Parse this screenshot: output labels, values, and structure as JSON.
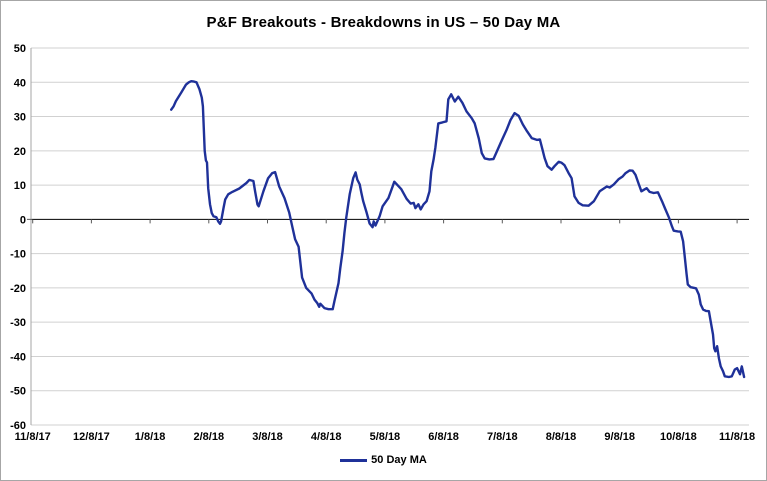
{
  "chart": {
    "title": "P&F Breakouts - Breakdowns in US – 50 Day MA",
    "legend": {
      "label": "50 Day MA"
    }
  },
  "colors": {
    "series_line": "#1f3199",
    "gridline": "#d1d1d1",
    "zero_line": "#000000",
    "axis_line": "#a6a6a6",
    "tick": "#595959",
    "text": "#000000",
    "frame_border": "#a6a6a6",
    "background": "#ffffff"
  },
  "chart_data": {
    "type": "line",
    "title": "P&F Breakouts - Breakdowns in US – 50 Day MA",
    "xlabel": "",
    "ylabel": "",
    "x_categories": [
      "11/8/17",
      "12/8/17",
      "1/8/18",
      "2/8/18",
      "3/8/18",
      "4/8/18",
      "5/8/18",
      "6/8/18",
      "7/8/18",
      "8/8/18",
      "9/8/18",
      "10/8/18",
      "11/8/18"
    ],
    "x_unit_note": "x values below are months after 11/8/17 (0 = 11/8/17, 12 = 11/8/18)",
    "ylim": [
      -60,
      50
    ],
    "y_ticks": [
      50,
      40,
      30,
      20,
      10,
      0,
      -10,
      -20,
      -30,
      -40,
      -50,
      -60
    ],
    "grid": true,
    "legend_position": "bottom",
    "series": [
      {
        "name": "50 Day MA",
        "color": "#1f3199",
        "points": [
          [
            2.36,
            32
          ],
          [
            2.4,
            33
          ],
          [
            2.44,
            34.5
          ],
          [
            2.53,
            37
          ],
          [
            2.61,
            39.3
          ],
          [
            2.66,
            40
          ],
          [
            2.7,
            40.3
          ],
          [
            2.75,
            40.2
          ],
          [
            2.79,
            40
          ],
          [
            2.84,
            38
          ],
          [
            2.88,
            35.5
          ],
          [
            2.9,
            33
          ],
          [
            2.93,
            20
          ],
          [
            2.95,
            17.2
          ],
          [
            2.97,
            16.6
          ],
          [
            2.99,
            9.1
          ],
          [
            3.02,
            4.4
          ],
          [
            3.05,
            1.9
          ],
          [
            3.08,
            0.9
          ],
          [
            3.13,
            0.6
          ],
          [
            3.16,
            -0.6
          ],
          [
            3.19,
            -1.3
          ],
          [
            3.21,
            -0.6
          ],
          [
            3.25,
            3.3
          ],
          [
            3.28,
            5.8
          ],
          [
            3.33,
            7.3
          ],
          [
            3.4,
            8.0
          ],
          [
            3.52,
            9.0
          ],
          [
            3.64,
            10.6
          ],
          [
            3.69,
            11.5
          ],
          [
            3.76,
            11.2
          ],
          [
            3.79,
            8.0
          ],
          [
            3.83,
            4.3
          ],
          [
            3.85,
            3.8
          ],
          [
            3.93,
            8.2
          ],
          [
            4.01,
            12.0
          ],
          [
            4.08,
            13.5
          ],
          [
            4.13,
            13.8
          ],
          [
            4.2,
            9.6
          ],
          [
            4.29,
            6.2
          ],
          [
            4.37,
            2.0
          ],
          [
            4.42,
            -2.0
          ],
          [
            4.47,
            -5.8
          ],
          [
            4.53,
            -8.0
          ],
          [
            4.59,
            -17.0
          ],
          [
            4.66,
            -20.0
          ],
          [
            4.75,
            -21.6
          ],
          [
            4.8,
            -23.4
          ],
          [
            4.85,
            -24.5
          ],
          [
            4.88,
            -25.5
          ],
          [
            4.9,
            -24.6
          ],
          [
            4.97,
            -25.9
          ],
          [
            5.04,
            -26.2
          ],
          [
            5.11,
            -26.2
          ],
          [
            5.14,
            -23.9
          ],
          [
            5.21,
            -18.6
          ],
          [
            5.24,
            -14.2
          ],
          [
            5.28,
            -9.3
          ],
          [
            5.31,
            -4.0
          ],
          [
            5.34,
            0.4
          ],
          [
            5.4,
            7.3
          ],
          [
            5.46,
            12.0
          ],
          [
            5.5,
            13.7
          ],
          [
            5.53,
            11.6
          ],
          [
            5.57,
            10.2
          ],
          [
            5.6,
            7.7
          ],
          [
            5.63,
            5.3
          ],
          [
            5.69,
            1.9
          ],
          [
            5.74,
            -1.2
          ],
          [
            5.79,
            -2.3
          ],
          [
            5.81,
            -0.6
          ],
          [
            5.84,
            -1.8
          ],
          [
            5.91,
            0.9
          ],
          [
            5.96,
            3.8
          ],
          [
            6.06,
            6.2
          ],
          [
            6.13,
            9.5
          ],
          [
            6.16,
            11.0
          ],
          [
            6.23,
            9.7
          ],
          [
            6.28,
            8.8
          ],
          [
            6.37,
            6.0
          ],
          [
            6.44,
            4.6
          ],
          [
            6.49,
            4.8
          ],
          [
            6.52,
            3.3
          ],
          [
            6.57,
            4.4
          ],
          [
            6.61,
            2.9
          ],
          [
            6.66,
            4.4
          ],
          [
            6.71,
            5.3
          ],
          [
            6.76,
            8.2
          ],
          [
            6.79,
            14.0
          ],
          [
            6.83,
            17.5
          ],
          [
            6.86,
            21.0
          ],
          [
            6.91,
            28.0
          ],
          [
            6.98,
            28.3
          ],
          [
            7.05,
            28.6
          ],
          [
            7.08,
            35.0
          ],
          [
            7.13,
            36.5
          ],
          [
            7.19,
            34.4
          ],
          [
            7.25,
            35.8
          ],
          [
            7.32,
            34.0
          ],
          [
            7.39,
            31.5
          ],
          [
            7.48,
            29.5
          ],
          [
            7.53,
            28.0
          ],
          [
            7.6,
            23.6
          ],
          [
            7.65,
            19.3
          ],
          [
            7.7,
            17.8
          ],
          [
            7.78,
            17.5
          ],
          [
            7.85,
            17.6
          ],
          [
            7.9,
            19.5
          ],
          [
            7.99,
            23.0
          ],
          [
            8.07,
            26.0
          ],
          [
            8.14,
            29.0
          ],
          [
            8.21,
            31.0
          ],
          [
            8.28,
            30.2
          ],
          [
            8.35,
            27.7
          ],
          [
            8.41,
            26.0
          ],
          [
            8.5,
            23.7
          ],
          [
            8.59,
            23.2
          ],
          [
            8.64,
            23.3
          ],
          [
            8.69,
            20.0
          ],
          [
            8.72,
            17.9
          ],
          [
            8.77,
            15.5
          ],
          [
            8.84,
            14.5
          ],
          [
            8.89,
            15.5
          ],
          [
            8.96,
            16.8
          ],
          [
            9.01,
            16.5
          ],
          [
            9.06,
            15.8
          ],
          [
            9.13,
            13.5
          ],
          [
            9.18,
            12.0
          ],
          [
            9.23,
            6.7
          ],
          [
            9.3,
            4.8
          ],
          [
            9.37,
            4.1
          ],
          [
            9.47,
            4.0
          ],
          [
            9.56,
            5.3
          ],
          [
            9.66,
            8.2
          ],
          [
            9.78,
            9.6
          ],
          [
            9.83,
            9.3
          ],
          [
            9.9,
            10.2
          ],
          [
            9.98,
            11.7
          ],
          [
            10.05,
            12.5
          ],
          [
            10.1,
            13.5
          ],
          [
            10.17,
            14.3
          ],
          [
            10.22,
            14.2
          ],
          [
            10.27,
            13.0
          ],
          [
            10.32,
            10.5
          ],
          [
            10.37,
            8.2
          ],
          [
            10.43,
            8.8
          ],
          [
            10.46,
            9.1
          ],
          [
            10.51,
            8.0
          ],
          [
            10.58,
            7.7
          ],
          [
            10.65,
            7.9
          ],
          [
            10.72,
            5.3
          ],
          [
            10.77,
            3.3
          ],
          [
            10.84,
            0.5
          ],
          [
            10.89,
            -2.0
          ],
          [
            10.92,
            -3.3
          ],
          [
            10.99,
            -3.5
          ],
          [
            11.04,
            -3.6
          ],
          [
            11.08,
            -6.4
          ],
          [
            11.11,
            -11.3
          ],
          [
            11.14,
            -16.0
          ],
          [
            11.16,
            -19.0
          ],
          [
            11.21,
            -19.8
          ],
          [
            11.3,
            -20.1
          ],
          [
            11.35,
            -22.0
          ],
          [
            11.38,
            -24.8
          ],
          [
            11.42,
            -26.3
          ],
          [
            11.47,
            -26.7
          ],
          [
            11.52,
            -26.8
          ],
          [
            11.55,
            -29.8
          ],
          [
            11.59,
            -33.6
          ],
          [
            11.61,
            -37.6
          ],
          [
            11.63,
            -38.5
          ],
          [
            11.66,
            -37.0
          ],
          [
            11.69,
            -40.5
          ],
          [
            11.72,
            -42.9
          ],
          [
            11.76,
            -44.3
          ],
          [
            11.79,
            -45.8
          ],
          [
            11.86,
            -46.0
          ],
          [
            11.91,
            -45.8
          ],
          [
            11.96,
            -43.8
          ],
          [
            12.0,
            -43.4
          ],
          [
            12.05,
            -45.2
          ],
          [
            12.08,
            -42.9
          ],
          [
            12.12,
            -46.0
          ]
        ]
      }
    ]
  }
}
